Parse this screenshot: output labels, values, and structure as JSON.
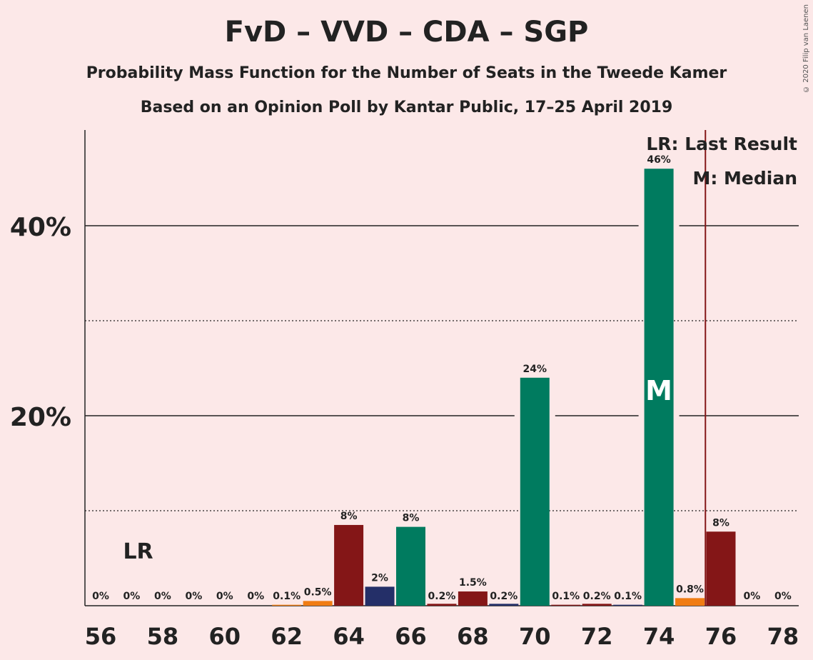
{
  "title": "FvD – VVD – CDA – SGP",
  "subtitle": "Probability Mass Function for the Number of Seats in the Tweede Kamer",
  "subtitle2": "Based on an Opinion Poll by Kantar Public, 17–25 April 2019",
  "copyright": "© 2020 Filip van Laenen",
  "legend": {
    "last_result": "LR: Last Result",
    "median": "M: Median"
  },
  "lr_marker": "LR",
  "median_marker": "M",
  "colors": {
    "background": "#fce8e8",
    "FvD": "#841617",
    "VVD": "#f07c13",
    "CDA": "#007b5f",
    "SGP": "#242f68",
    "last_result_line": "#841617"
  },
  "chart_data": {
    "type": "bar",
    "x": [
      56,
      57,
      58,
      59,
      60,
      61,
      62,
      63,
      64,
      65,
      66,
      67,
      68,
      69,
      70,
      71,
      72,
      73,
      74,
      75,
      76,
      77,
      78
    ],
    "values": [
      0,
      0,
      0,
      0,
      0,
      0,
      0.1,
      0.5,
      8.5,
      2,
      8.3,
      0.2,
      1.5,
      0.2,
      24,
      0.1,
      0.2,
      0.1,
      46,
      0.8,
      7.8,
      0,
      0
    ],
    "value_labels": [
      "0%",
      "0%",
      "0%",
      "0%",
      "0%",
      "0%",
      "0.1%",
      "0.5%",
      "8%",
      "2%",
      "8%",
      "0.2%",
      "1.5%",
      "0.2%",
      "24%",
      "0.1%",
      "0.2%",
      "0.1%",
      "46%",
      "0.8%",
      "8%",
      "0%",
      "0%"
    ],
    "bar_colors": [
      "CDA",
      "FvD",
      "VVD",
      "SGP",
      "CDA",
      "FvD",
      "VVD",
      "VVD",
      "FvD",
      "SGP",
      "CDA",
      "FvD",
      "FvD",
      "SGP",
      "CDA",
      "FvD",
      "FvD",
      "SGP",
      "CDA",
      "VVD",
      "FvD",
      "FvD",
      "FvD"
    ],
    "x_ticks": [
      "56",
      "58",
      "60",
      "62",
      "64",
      "66",
      "68",
      "70",
      "72",
      "74",
      "76",
      "78"
    ],
    "y_ticks": [
      "20%",
      "40%"
    ],
    "ylim": [
      0,
      50
    ],
    "median_seat": 74,
    "last_result_seat": 75.5,
    "lr_label_seat": 57,
    "grid": "solid at 20% and 40%, dotted at 10% and 30%"
  }
}
